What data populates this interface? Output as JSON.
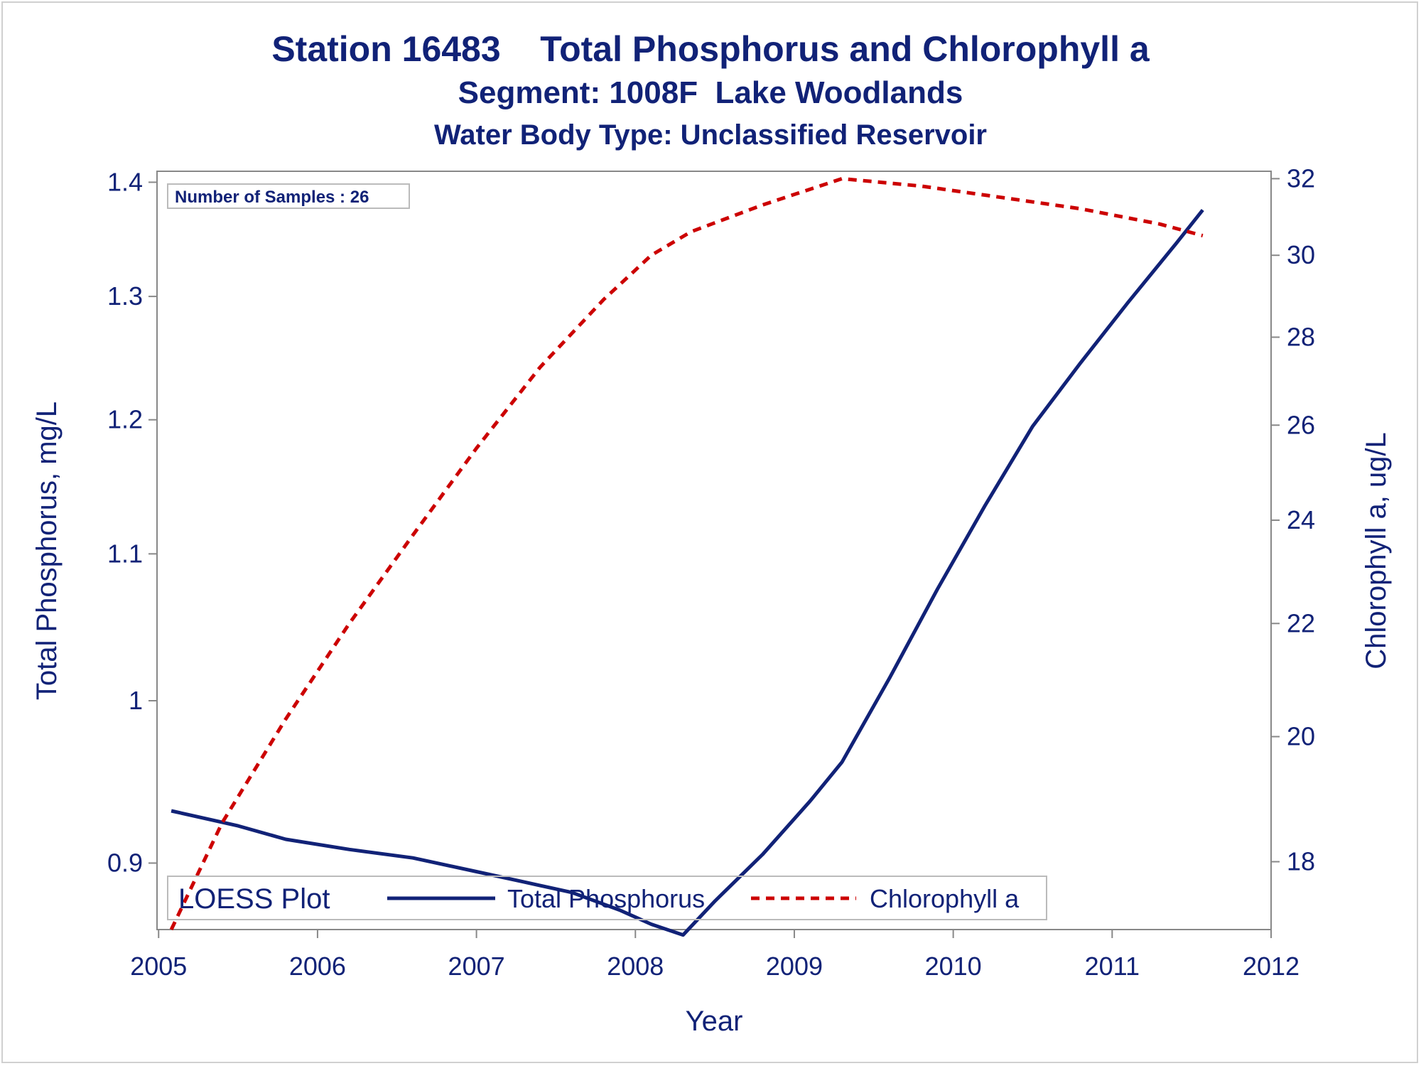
{
  "titles": {
    "line1": "Station 16483    Total Phosphorus and Chlorophyll a",
    "line2": "Segment: 1008F  Lake Woodlands",
    "line3": "Water Body Type: Unclassified Reservoir"
  },
  "inset_note": "Number of Samples : 26",
  "legend": {
    "title": "LOESS Plot",
    "items": [
      {
        "label": "Total Phosphorus",
        "color": "#112277",
        "dash": "solid"
      },
      {
        "label": "Chlorophyll a",
        "color": "#cc0000",
        "dash": "dashed"
      }
    ]
  },
  "colors": {
    "text": "#112277",
    "axis": "#888888",
    "tp": "#112277",
    "chl": "#cc0000"
  },
  "chart_data": {
    "type": "line",
    "xlabel": "Year",
    "ylabel": "Total Phosphorus, mg/L",
    "y2label": "Chlorophyll a, ug/L",
    "xlim": [
      2004.99,
      2012.0
    ],
    "ylim": [
      0.862,
      1.41
    ],
    "y2lim": [
      17.0,
      32.2
    ],
    "y_scale": "log",
    "y2_scale": "log",
    "grid": false,
    "legend_position": "bottom-inside",
    "xticks": [
      2005,
      2006,
      2007,
      2008,
      2009,
      2010,
      2011,
      2012
    ],
    "yticks": [
      0.9,
      1.0,
      1.1,
      1.2,
      1.3,
      1.4
    ],
    "ytick_labels": [
      "0.9",
      "1",
      "1.1",
      "1.2",
      "1.3",
      "1.4"
    ],
    "y2ticks": [
      18,
      20,
      22,
      24,
      26,
      28,
      30,
      32
    ],
    "series": [
      {
        "name": "Total Phosphorus",
        "axis": "left",
        "x": [
          2005.08,
          2005.5,
          2005.8,
          2006.2,
          2006.6,
          2007.0,
          2007.3,
          2007.6,
          2007.9,
          2008.1,
          2008.3,
          2008.5,
          2008.8,
          2009.1,
          2009.3,
          2009.6,
          2009.9,
          2010.2,
          2010.5,
          2010.8,
          2011.1,
          2011.4,
          2011.57
        ],
        "y": [
          0.931,
          0.922,
          0.914,
          0.908,
          0.903,
          0.895,
          0.889,
          0.883,
          0.873,
          0.865,
          0.859,
          0.878,
          0.905,
          0.937,
          0.961,
          1.015,
          1.075,
          1.135,
          1.195,
          1.245,
          1.295,
          1.345,
          1.375
        ]
      },
      {
        "name": "Chlorophyll a",
        "axis": "right",
        "x": [
          2005.08,
          2005.4,
          2005.8,
          2006.2,
          2006.6,
          2007.0,
          2007.4,
          2007.8,
          2008.1,
          2008.35,
          2008.8,
          2009.3,
          2009.8,
          2010.3,
          2010.8,
          2011.3,
          2011.57
        ],
        "y": [
          17.0,
          18.6,
          20.3,
          22.0,
          23.7,
          25.5,
          27.3,
          28.9,
          30.0,
          30.6,
          31.3,
          32.0,
          31.8,
          31.5,
          31.2,
          30.8,
          30.5
        ]
      }
    ]
  }
}
